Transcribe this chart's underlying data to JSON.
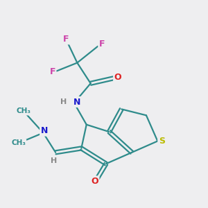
{
  "bg_color": "#eeeef0",
  "bond_color": "#2e8b8b",
  "N_color": "#1a1acc",
  "O_color": "#dd2222",
  "S_color": "#bbbb00",
  "F_color": "#cc44aa",
  "H_color": "#888888",
  "figsize": [
    3.0,
    3.0
  ],
  "dpi": 100,
  "xlim": [
    0,
    10
  ],
  "ylim": [
    0,
    10
  ]
}
